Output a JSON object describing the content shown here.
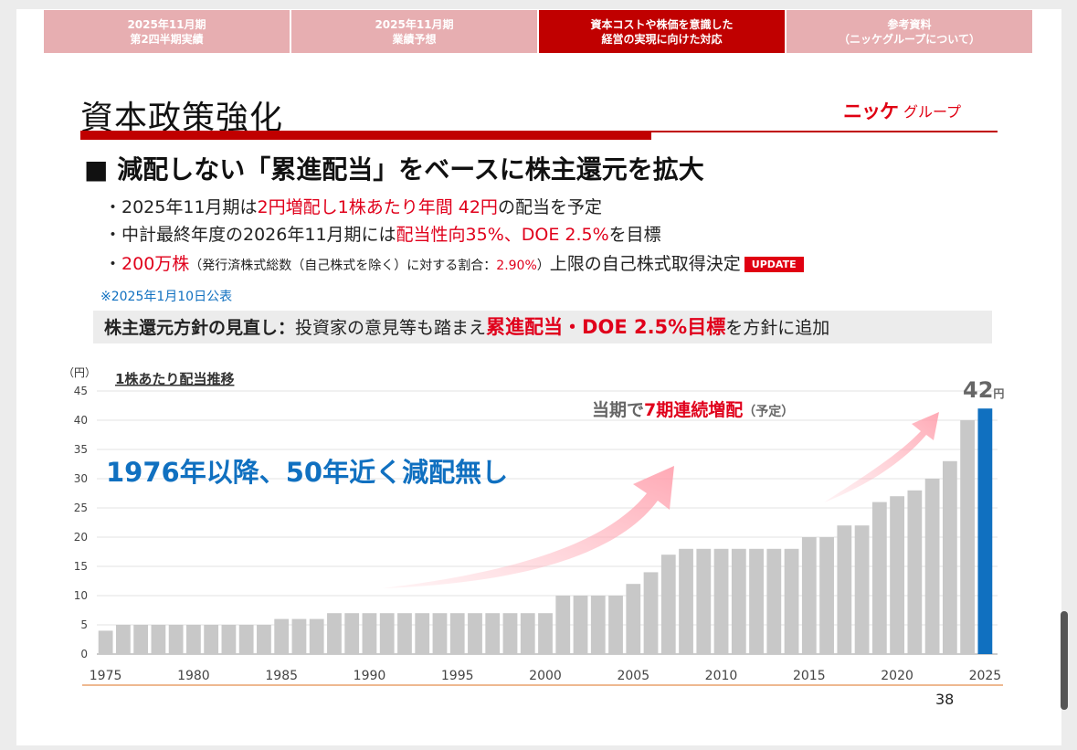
{
  "tabs": [
    {
      "line1": "2025年11月期",
      "line2": "第2四半期実績",
      "active": false
    },
    {
      "line1": "2025年11月期",
      "line2": "業績予想",
      "active": false
    },
    {
      "line1": "資本コストや株価を意識した",
      "line2": "経営の実現に向けた対応",
      "active": true
    },
    {
      "line1": "参考資料",
      "line2": "（ニッケグループについて）",
      "active": false
    }
  ],
  "title": "資本政策強化",
  "logo": {
    "mark": "ニッケ",
    "text": "グループ"
  },
  "heading": "■ 減配しない「累進配当」をベースに株主還元を拡大",
  "bullets": {
    "b1": {
      "pre": "・2025年11月期は",
      "red": "2円増配し1株あたり年間 42円",
      "post": "の配当を予定"
    },
    "b2": {
      "pre": "・中計最終年度の2026年11月期には",
      "red": "配当性向35%、DOE 2.5%",
      "post": "を目標"
    },
    "b3": {
      "dot": "・",
      "red": "200万株",
      "small_pre": "（発行済株式総数（自己株式を除く）に対する割合：",
      "small_red": "2.90%",
      "small_post": "）",
      "post": "上限の自己株式取得決定",
      "badge": "UPDATE"
    }
  },
  "note": "※2025年1月10日公表",
  "policy": {
    "bold": "株主還元方針の見直し：",
    "pre": "投資家の意見等も踏まえ",
    "red": "累進配当・DOE 2.5%目標",
    "post": "を方針に追加"
  },
  "page_number": "38",
  "colors": {
    "accent": "#c00000",
    "bar": "#c8c8c8",
    "highlight_bar": "#1070c0",
    "red_text": "#e0001b"
  },
  "chart_data": {
    "type": "bar",
    "title": "1株あたり配当推移",
    "ylabel": "（円）",
    "ylim": [
      0,
      45
    ],
    "yticks": [
      0,
      5,
      10,
      15,
      20,
      25,
      30,
      35,
      40,
      45
    ],
    "xtick_labels": [
      "1975",
      "1980",
      "1985",
      "1990",
      "1995",
      "2000",
      "2005",
      "2010",
      "2015",
      "2020",
      "2025"
    ],
    "x": [
      1975,
      1976,
      1977,
      1978,
      1979,
      1980,
      1981,
      1982,
      1983,
      1984,
      1985,
      1986,
      1987,
      1988,
      1989,
      1990,
      1991,
      1992,
      1993,
      1994,
      1995,
      1996,
      1997,
      1998,
      1999,
      2000,
      2001,
      2002,
      2003,
      2004,
      2005,
      2006,
      2007,
      2008,
      2009,
      2010,
      2011,
      2012,
      2013,
      2014,
      2015,
      2016,
      2017,
      2018,
      2019,
      2020,
      2021,
      2022,
      2023,
      2024,
      2025
    ],
    "values": [
      4,
      5,
      5,
      5,
      5,
      5,
      5,
      5,
      5,
      5,
      6,
      6,
      6,
      7,
      7,
      7,
      7,
      7,
      7,
      7,
      7,
      7,
      7,
      7,
      7,
      7,
      10,
      10,
      10,
      10,
      12,
      14,
      17,
      18,
      18,
      18,
      18,
      18,
      18,
      18,
      20,
      20,
      22,
      22,
      26,
      27,
      28,
      30,
      33,
      40,
      42
    ],
    "highlight_index": 50,
    "last_label_value": "42",
    "last_label_unit": "円",
    "annotations": {
      "main": "1976年以降、50年近く減配無し",
      "streak_pre": "当期で",
      "streak_red": "7期連続増配",
      "streak_note": "（予定）"
    },
    "grid": true
  }
}
